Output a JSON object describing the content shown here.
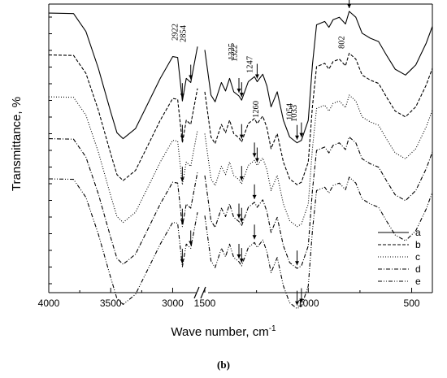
{
  "caption": "(b)",
  "chart_data": {
    "type": "line",
    "title": "",
    "xlabel": "Wave number, cm",
    "xlabel_superscript": "-1",
    "ylabel": "Transmittance, %",
    "x_reversed": true,
    "x_axis_break": true,
    "x_segments": [
      {
        "range": [
          4000,
          2780
        ],
        "ticks": [
          4000,
          3500,
          3000
        ]
      },
      {
        "range": [
          1500,
          400
        ],
        "ticks": [
          1500,
          1000,
          500
        ]
      }
    ],
    "x_ticks_labels": [
      "4000",
      "3500",
      "3000",
      "1500",
      "1000",
      "500"
    ],
    "y_ticks_labeled": false,
    "grid": false,
    "legend_position": "bottom-right",
    "series": [
      {
        "name": "a",
        "dash": "solid",
        "offset": 0,
        "left": [
          [
            4000,
            2
          ],
          [
            3800,
            2.6
          ],
          [
            3700,
            24
          ],
          [
            3600,
            68
          ],
          [
            3500,
            120
          ],
          [
            3450,
            145
          ],
          [
            3400,
            152
          ],
          [
            3300,
            140
          ],
          [
            3200,
            110
          ],
          [
            3100,
            80
          ],
          [
            3000,
            54
          ],
          [
            2960,
            55
          ],
          [
            2922,
            107
          ],
          [
            2890,
            80
          ],
          [
            2854,
            85
          ],
          [
            2800,
            42
          ]
        ],
        "right": [
          [
            1500,
            46
          ],
          [
            1470,
            100
          ],
          [
            1450,
            108
          ],
          [
            1420,
            85
          ],
          [
            1400,
            95
          ],
          [
            1380,
            80
          ],
          [
            1360,
            96
          ],
          [
            1335,
            101
          ],
          [
            1322,
            106
          ],
          [
            1290,
            84
          ],
          [
            1260,
            78
          ],
          [
            1247,
            84
          ],
          [
            1220,
            75
          ],
          [
            1200,
            89
          ],
          [
            1180,
            114
          ],
          [
            1150,
            96
          ],
          [
            1120,
            130
          ],
          [
            1090,
            150
          ],
          [
            1054,
            157
          ],
          [
            1033,
            154
          ],
          [
            1000,
            130
          ],
          [
            980,
            64
          ],
          [
            960,
            16
          ],
          [
            920,
            12
          ],
          [
            900,
            19
          ],
          [
            880,
            10
          ],
          [
            850,
            7
          ],
          [
            820,
            15
          ],
          [
            802,
            0
          ],
          [
            770,
            7
          ],
          [
            740,
            26
          ],
          [
            700,
            32
          ],
          [
            660,
            36
          ],
          [
            620,
            53
          ],
          [
            580,
            69
          ],
          [
            530,
            76
          ],
          [
            480,
            64
          ],
          [
            430,
            38
          ],
          [
            400,
            18
          ]
        ]
      },
      {
        "name": "b",
        "dash": "dashed",
        "offset": 50,
        "left": [
          [
            4000,
            2
          ],
          [
            3800,
            2.6
          ],
          [
            3700,
            24
          ],
          [
            3600,
            68
          ],
          [
            3500,
            120
          ],
          [
            3450,
            145
          ],
          [
            3400,
            152
          ],
          [
            3300,
            140
          ],
          [
            3200,
            110
          ],
          [
            3100,
            80
          ],
          [
            3000,
            54
          ],
          [
            2960,
            55
          ],
          [
            2922,
            107
          ],
          [
            2890,
            80
          ],
          [
            2854,
            85
          ],
          [
            2800,
            42
          ]
        ],
        "right": [
          [
            1500,
            46
          ],
          [
            1470,
            100
          ],
          [
            1450,
            108
          ],
          [
            1420,
            85
          ],
          [
            1400,
            95
          ],
          [
            1380,
            80
          ],
          [
            1360,
            96
          ],
          [
            1335,
            101
          ],
          [
            1322,
            106
          ],
          [
            1290,
            84
          ],
          [
            1260,
            78
          ],
          [
            1247,
            84
          ],
          [
            1220,
            75
          ],
          [
            1200,
            89
          ],
          [
            1180,
            114
          ],
          [
            1150,
            96
          ],
          [
            1120,
            130
          ],
          [
            1090,
            150
          ],
          [
            1054,
            157
          ],
          [
            1033,
            154
          ],
          [
            1000,
            130
          ],
          [
            980,
            64
          ],
          [
            960,
            16
          ],
          [
            920,
            12
          ],
          [
            900,
            19
          ],
          [
            880,
            10
          ],
          [
            850,
            7
          ],
          [
            820,
            15
          ],
          [
            802,
            0
          ],
          [
            770,
            7
          ],
          [
            740,
            26
          ],
          [
            700,
            32
          ],
          [
            660,
            36
          ],
          [
            620,
            53
          ],
          [
            580,
            69
          ],
          [
            530,
            76
          ],
          [
            480,
            64
          ],
          [
            430,
            38
          ],
          [
            400,
            18
          ]
        ]
      },
      {
        "name": "c",
        "dash": "dotted",
        "offset": 100,
        "left": [
          [
            4000,
            2
          ],
          [
            3800,
            2.6
          ],
          [
            3700,
            24
          ],
          [
            3600,
            68
          ],
          [
            3500,
            120
          ],
          [
            3450,
            145
          ],
          [
            3400,
            152
          ],
          [
            3300,
            140
          ],
          [
            3200,
            110
          ],
          [
            3100,
            80
          ],
          [
            3000,
            54
          ],
          [
            2960,
            55
          ],
          [
            2922,
            107
          ],
          [
            2890,
            80
          ],
          [
            2854,
            85
          ],
          [
            2800,
            42
          ]
        ],
        "right": [
          [
            1500,
            46
          ],
          [
            1470,
            100
          ],
          [
            1450,
            108
          ],
          [
            1420,
            85
          ],
          [
            1400,
            95
          ],
          [
            1380,
            80
          ],
          [
            1360,
            96
          ],
          [
            1335,
            101
          ],
          [
            1322,
            106
          ],
          [
            1290,
            84
          ],
          [
            1260,
            78
          ],
          [
            1247,
            84
          ],
          [
            1220,
            75
          ],
          [
            1200,
            89
          ],
          [
            1180,
            114
          ],
          [
            1150,
            96
          ],
          [
            1120,
            130
          ],
          [
            1090,
            150
          ],
          [
            1054,
            157
          ],
          [
            1033,
            154
          ],
          [
            1000,
            130
          ],
          [
            980,
            64
          ],
          [
            960,
            16
          ],
          [
            920,
            12
          ],
          [
            900,
            19
          ],
          [
            880,
            10
          ],
          [
            850,
            7
          ],
          [
            820,
            15
          ],
          [
            802,
            0
          ],
          [
            770,
            7
          ],
          [
            740,
            26
          ],
          [
            700,
            32
          ],
          [
            660,
            36
          ],
          [
            620,
            53
          ],
          [
            580,
            69
          ],
          [
            530,
            76
          ],
          [
            480,
            64
          ],
          [
            430,
            38
          ],
          [
            400,
            18
          ]
        ]
      },
      {
        "name": "d",
        "dash": "dash-dot",
        "offset": 150,
        "left": [
          [
            4000,
            2
          ],
          [
            3800,
            2.6
          ],
          [
            3700,
            24
          ],
          [
            3600,
            68
          ],
          [
            3500,
            120
          ],
          [
            3450,
            145
          ],
          [
            3400,
            152
          ],
          [
            3300,
            140
          ],
          [
            3200,
            110
          ],
          [
            3100,
            80
          ],
          [
            3000,
            54
          ],
          [
            2960,
            55
          ],
          [
            2922,
            107
          ],
          [
            2890,
            80
          ],
          [
            2854,
            85
          ],
          [
            2800,
            42
          ]
        ],
        "right": [
          [
            1500,
            46
          ],
          [
            1470,
            100
          ],
          [
            1450,
            108
          ],
          [
            1420,
            85
          ],
          [
            1400,
            95
          ],
          [
            1380,
            80
          ],
          [
            1360,
            96
          ],
          [
            1335,
            101
          ],
          [
            1322,
            106
          ],
          [
            1290,
            84
          ],
          [
            1260,
            78
          ],
          [
            1247,
            84
          ],
          [
            1220,
            75
          ],
          [
            1200,
            89
          ],
          [
            1180,
            114
          ],
          [
            1150,
            96
          ],
          [
            1120,
            130
          ],
          [
            1090,
            150
          ],
          [
            1054,
            157
          ],
          [
            1033,
            154
          ],
          [
            1000,
            130
          ],
          [
            980,
            64
          ],
          [
            960,
            16
          ],
          [
            920,
            12
          ],
          [
            900,
            19
          ],
          [
            880,
            10
          ],
          [
            850,
            7
          ],
          [
            820,
            15
          ],
          [
            802,
            0
          ],
          [
            770,
            7
          ],
          [
            740,
            26
          ],
          [
            700,
            32
          ],
          [
            660,
            36
          ],
          [
            620,
            53
          ],
          [
            580,
            69
          ],
          [
            530,
            76
          ],
          [
            480,
            64
          ],
          [
            430,
            38
          ],
          [
            400,
            18
          ]
        ]
      },
      {
        "name": "e",
        "dash": "dash-dot-dot",
        "offset": 198,
        "left": [
          [
            4000,
            2
          ],
          [
            3800,
            2.6
          ],
          [
            3700,
            24
          ],
          [
            3600,
            68
          ],
          [
            3500,
            120
          ],
          [
            3450,
            145
          ],
          [
            3400,
            152
          ],
          [
            3300,
            140
          ],
          [
            3200,
            110
          ],
          [
            3100,
            80
          ],
          [
            3000,
            54
          ],
          [
            2960,
            55
          ],
          [
            2922,
            107
          ],
          [
            2890,
            80
          ],
          [
            2854,
            85
          ],
          [
            2800,
            42
          ]
        ],
        "right": [
          [
            1500,
            46
          ],
          [
            1470,
            100
          ],
          [
            1450,
            108
          ],
          [
            1420,
            85
          ],
          [
            1400,
            95
          ],
          [
            1380,
            80
          ],
          [
            1360,
            96
          ],
          [
            1335,
            101
          ],
          [
            1322,
            106
          ],
          [
            1290,
            84
          ],
          [
            1260,
            78
          ],
          [
            1247,
            84
          ],
          [
            1220,
            75
          ],
          [
            1200,
            89
          ],
          [
            1180,
            114
          ],
          [
            1150,
            96
          ],
          [
            1120,
            130
          ],
          [
            1090,
            150
          ],
          [
            1054,
            157
          ],
          [
            1033,
            154
          ],
          [
            1000,
            130
          ],
          [
            980,
            64
          ],
          [
            960,
            16
          ],
          [
            920,
            12
          ],
          [
            900,
            19
          ],
          [
            880,
            10
          ],
          [
            850,
            7
          ],
          [
            820,
            15
          ],
          [
            802,
            0
          ],
          [
            770,
            7
          ],
          [
            740,
            26
          ],
          [
            700,
            32
          ],
          [
            660,
            36
          ],
          [
            620,
            53
          ],
          [
            580,
            69
          ],
          [
            530,
            76
          ],
          [
            480,
            64
          ],
          [
            430,
            38
          ],
          [
            400,
            18
          ]
        ]
      }
    ],
    "annotations": [
      {
        "label": "2922",
        "x": 2922
      },
      {
        "label": "2854",
        "x": 2854
      },
      {
        "label": "1335",
        "x": 1335
      },
      {
        "label": "1322",
        "x": 1322
      },
      {
        "label": "1247",
        "x": 1247
      },
      {
        "label": "1260",
        "x": 1260
      },
      {
        "label": "1054",
        "x": 1054
      },
      {
        "label": "1033",
        "x": 1033
      },
      {
        "label": "802",
        "x": 802
      }
    ],
    "marker_arrows": [
      [
        2922,
        0
      ],
      [
        2854,
        0
      ],
      [
        1335,
        0
      ],
      [
        1322,
        0
      ],
      [
        1247,
        0
      ],
      [
        802,
        0
      ],
      [
        1054,
        0
      ],
      [
        1033,
        0
      ],
      [
        2922,
        50
      ],
      [
        1322,
        50
      ],
      [
        2922,
        100
      ],
      [
        1322,
        100
      ],
      [
        1260,
        100
      ],
      [
        1247,
        100
      ],
      [
        2922,
        150
      ],
      [
        1335,
        150
      ],
      [
        1322,
        150
      ],
      [
        1260,
        150
      ],
      [
        1054,
        150
      ],
      [
        2922,
        198
      ],
      [
        2854,
        198
      ],
      [
        1335,
        198
      ],
      [
        1322,
        198
      ],
      [
        1260,
        198
      ],
      [
        1054,
        198
      ],
      [
        1033,
        198
      ]
    ]
  }
}
